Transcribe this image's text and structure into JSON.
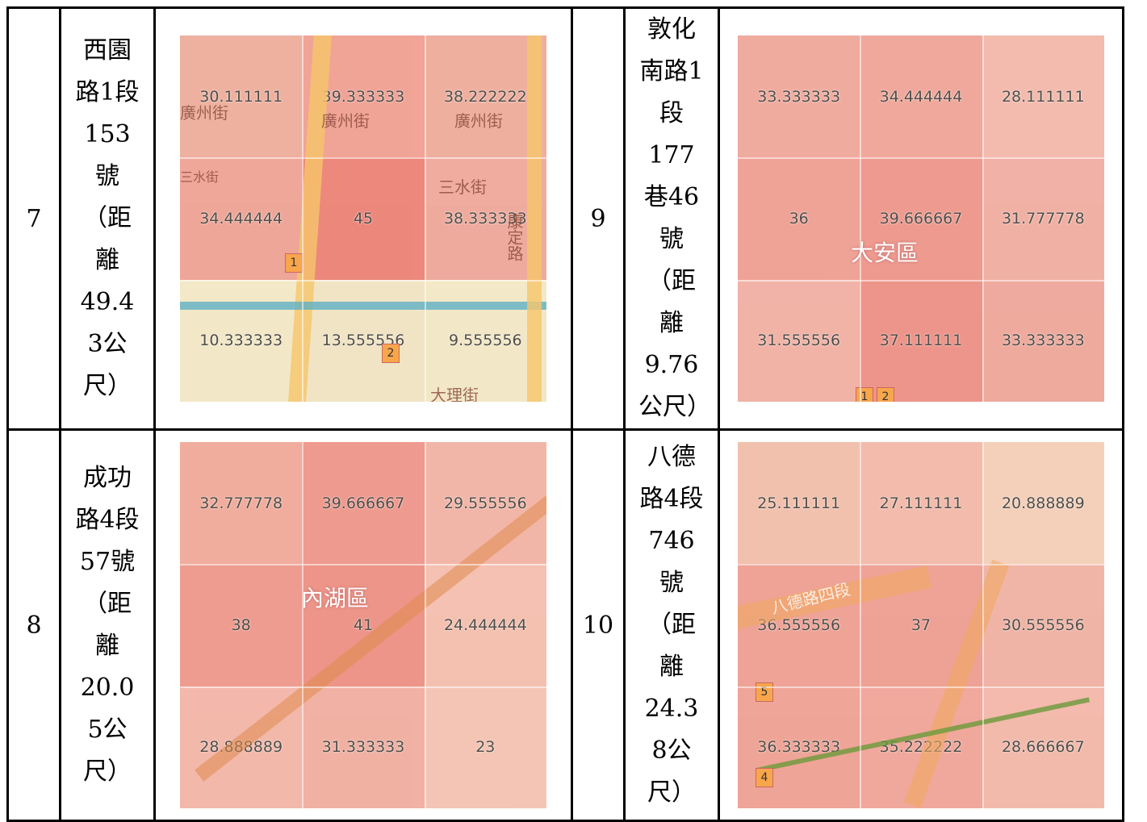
{
  "rows": [
    {
      "num": "7",
      "address": "西園路1段153號（距離49.43公尺）",
      "grid": [
        "30.111111",
        "39.333333",
        "38.222222",
        "34.444444",
        "45",
        "38.333333",
        "10.333333",
        "13.555556",
        "9.555556"
      ],
      "colors": [
        "#eeaa9b",
        "#f09b90",
        "#eea89a",
        "#ee9e92",
        "#ec7b72",
        "#eea498",
        "#f2e8c6",
        "#f0e4c4",
        "#f2e8c6"
      ]
    },
    {
      "num": "9",
      "address": "敦化南路1段177巷46號（距離9.76公尺）",
      "grid": [
        "33.333333",
        "34.444444",
        "28.111111",
        "36",
        "39.666667",
        "31.777778",
        "31.555556",
        "37.111111",
        "33.333333"
      ],
      "colors": [
        "#f0a49a",
        "#f0a096",
        "#f2b6aa",
        "#ee9a90",
        "#ee9088",
        "#f0aaa0",
        "#f0aca2",
        "#ed8a82",
        "#eea298"
      ]
    },
    {
      "num": "8",
      "address": "成功路4段57號（距離20.05公尺）",
      "grid": [
        "32.777778",
        "39.666667",
        "29.555556",
        "38",
        "41",
        "24.444444",
        "28.888889",
        "31.333333",
        "23"
      ],
      "colors": [
        "#f0a698",
        "#ee9088",
        "#f2b0a4",
        "#ee9288",
        "#ec8a80",
        "#f4bcae",
        "#f2b2a6",
        "#f0aa9e",
        "#f4c0b2"
      ]
    },
    {
      "num": "10",
      "address": "八德路4段746號（距離24.38公尺）",
      "grid": [
        "25.111111",
        "27.111111",
        "20.888889",
        "36.555556",
        "37",
        "30.555556",
        "36.333333",
        "35.222222",
        "28.666667"
      ],
      "colors": [
        "#f2bcaa",
        "#f2b6a8",
        "#f4cdb8",
        "#ee9a90",
        "#ee988e",
        "#f0aea2",
        "#ee9c90",
        "#f0a096",
        "#f2b4a8"
      ]
    }
  ],
  "map_labels": {
    "r7": [
      "廣州街",
      "三水街",
      "康定路",
      "大理街"
    ],
    "r9": [
      "大安區"
    ],
    "r8": [
      "內湖區"
    ],
    "r10": [
      "八德路四段"
    ]
  },
  "markers": {
    "r7": [
      "1",
      "2"
    ],
    "r9": [
      "1",
      "2"
    ],
    "r10": [
      "5",
      "4"
    ]
  }
}
